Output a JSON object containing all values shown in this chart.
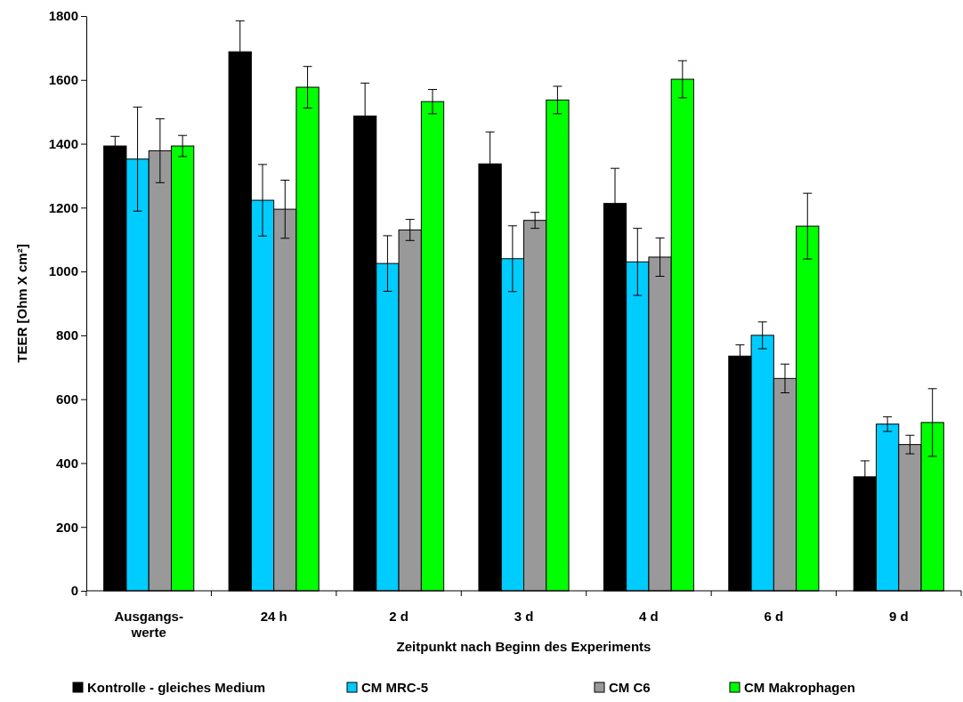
{
  "chart_data": {
    "type": "bar",
    "xlabel": "Zeitpunkt nach Beginn des Experiments",
    "ylabel": "TEER [Ohm X cm²]",
    "categories": [
      "Ausgangs-\nwerte",
      "24 h",
      "2 d",
      "3 d",
      "4 d",
      "6 d",
      "9 d"
    ],
    "series": [
      {
        "name": "Kontrolle - gleiches Medium",
        "color": "#000000",
        "values": [
          1393,
          1688,
          1487,
          1337,
          1213,
          735,
          357
        ],
        "errors": [
          30,
          97,
          103,
          100,
          110,
          35,
          50
        ]
      },
      {
        "name": "CM MRC-5",
        "color": "#00ccff",
        "values": [
          1352,
          1223,
          1025,
          1040,
          1030,
          800,
          522
        ],
        "errors": [
          163,
          112,
          87,
          103,
          105,
          42,
          23
        ]
      },
      {
        "name": "CM C6",
        "color": "#999999",
        "values": [
          1378,
          1195,
          1130,
          1160,
          1045,
          665,
          458
        ],
        "errors": [
          100,
          91,
          33,
          25,
          60,
          45,
          29
        ]
      },
      {
        "name": "CM Makrophagen",
        "color": "#00ff00",
        "values": [
          1393,
          1577,
          1532,
          1537,
          1602,
          1142,
          527
        ],
        "errors": [
          33,
          65,
          38,
          43,
          58,
          103,
          106
        ]
      }
    ],
    "ylim": [
      0,
      1800
    ],
    "yticks": [
      0,
      200,
      400,
      600,
      800,
      1000,
      1200,
      1400,
      1600,
      1800
    ],
    "grid": false,
    "legend": "bottom"
  }
}
